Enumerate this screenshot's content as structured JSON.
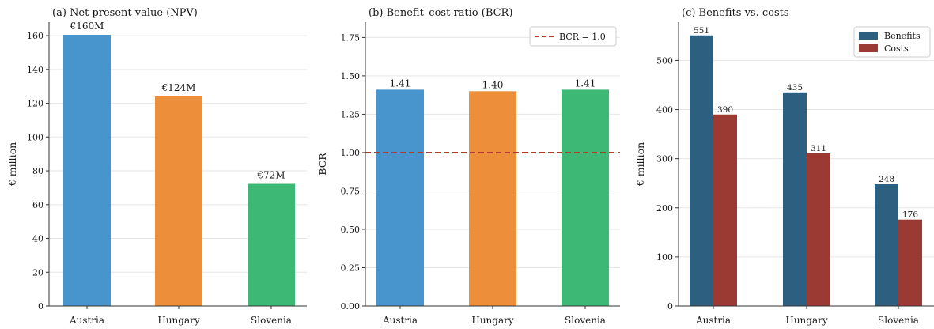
{
  "chart_data": [
    {
      "type": "bar",
      "title": "(a) Net present value (NPV)",
      "ylabel": "€ million",
      "categories": [
        "Austria",
        "Hungary",
        "Slovenia"
      ],
      "values": [
        160.5,
        124,
        72.3
      ],
      "data_labels": [
        "€160M",
        "€124M",
        "€72M"
      ],
      "colors": [
        "#3a8cc8",
        "#ec852c",
        "#2fb36b"
      ],
      "ylim": [
        0,
        168
      ],
      "yticks": [
        0,
        20,
        40,
        60,
        80,
        100,
        120,
        140,
        160
      ],
      "ytick_labels": [
        "0",
        "20",
        "40",
        "60",
        "80",
        "100",
        "120",
        "140",
        "160"
      ],
      "grid": true
    },
    {
      "type": "bar",
      "title": "(b) Benefit–cost ratio (BCR)",
      "ylabel": "BCR",
      "categories": [
        "Austria",
        "Hungary",
        "Slovenia"
      ],
      "values": [
        1.41,
        1.4,
        1.41
      ],
      "data_labels": [
        "1.41",
        "1.40",
        "1.41"
      ],
      "colors": [
        "#3a8cc8",
        "#ec852c",
        "#2fb36b"
      ],
      "ylim": [
        0,
        1.85
      ],
      "yticks": [
        0,
        0.25,
        0.5,
        0.75,
        1.0,
        1.25,
        1.5,
        1.75
      ],
      "ytick_labels": [
        "0.00",
        "0.25",
        "0.50",
        "0.75",
        "1.00",
        "1.25",
        "1.50",
        "1.75"
      ],
      "reference_line": {
        "value": 1.0,
        "label": "BCR = 1.0",
        "color": "#b03a2e"
      },
      "legend": "top-right",
      "grid": true
    },
    {
      "type": "bar",
      "title": "(c) Benefits vs. costs",
      "ylabel": "€ million",
      "categories": [
        "Austria",
        "Hungary",
        "Slovenia"
      ],
      "series": [
        {
          "name": "Benefits",
          "values": [
            551,
            435,
            248
          ],
          "data_labels": [
            "551",
            "435",
            "248"
          ],
          "color": "#2c5f80"
        },
        {
          "name": "Costs",
          "values": [
            390,
            311,
            176
          ],
          "data_labels": [
            "390",
            "311",
            "176"
          ],
          "color": "#9b3a32"
        }
      ],
      "ylim": [
        0,
        578
      ],
      "yticks": [
        0,
        100,
        200,
        300,
        400,
        500
      ],
      "ytick_labels": [
        "0",
        "100",
        "200",
        "300",
        "400",
        "500"
      ],
      "legend": "top-right",
      "grid": true
    }
  ]
}
